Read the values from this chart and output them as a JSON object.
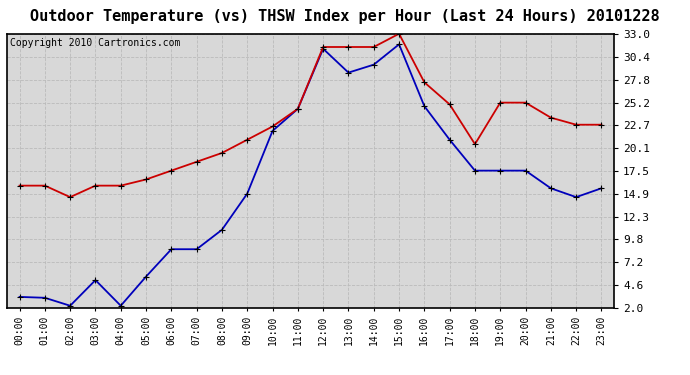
{
  "title": "Outdoor Temperature (vs) THSW Index per Hour (Last 24 Hours) 20101228",
  "copyright": "Copyright 2010 Cartronics.com",
  "hours": [
    "00:00",
    "01:00",
    "02:00",
    "03:00",
    "04:00",
    "05:00",
    "06:00",
    "07:00",
    "08:00",
    "09:00",
    "10:00",
    "11:00",
    "12:00",
    "13:00",
    "14:00",
    "15:00",
    "16:00",
    "17:00",
    "18:00",
    "19:00",
    "20:00",
    "21:00",
    "22:00",
    "23:00"
  ],
  "blue_temp": [
    3.2,
    3.1,
    2.2,
    5.1,
    2.2,
    5.5,
    8.6,
    8.6,
    10.8,
    14.9,
    22.0,
    24.5,
    31.3,
    28.6,
    29.5,
    31.8,
    24.8,
    21.0,
    17.5,
    17.5,
    17.5,
    15.5,
    14.5,
    15.5
  ],
  "red_thsw": [
    15.8,
    15.8,
    14.5,
    15.8,
    15.8,
    16.5,
    17.5,
    18.5,
    19.5,
    21.0,
    22.5,
    24.5,
    31.5,
    31.5,
    31.5,
    33.0,
    27.5,
    25.0,
    20.5,
    25.2,
    25.2,
    23.5,
    22.7,
    22.7
  ],
  "y_ticks": [
    2.0,
    4.6,
    7.2,
    9.8,
    12.3,
    14.9,
    17.5,
    20.1,
    22.7,
    25.2,
    27.8,
    30.4,
    33.0
  ],
  "ymin": 2.0,
  "ymax": 33.0,
  "blue_color": "#0000bb",
  "red_color": "#cc0000",
  "bg_color": "#ffffff",
  "plot_bg_color": "#d8d8d8",
  "grid_color": "#bbbbbb",
  "title_fontsize": 11,
  "copyright_fontsize": 7,
  "tick_fontsize": 8,
  "xtick_fontsize": 7
}
